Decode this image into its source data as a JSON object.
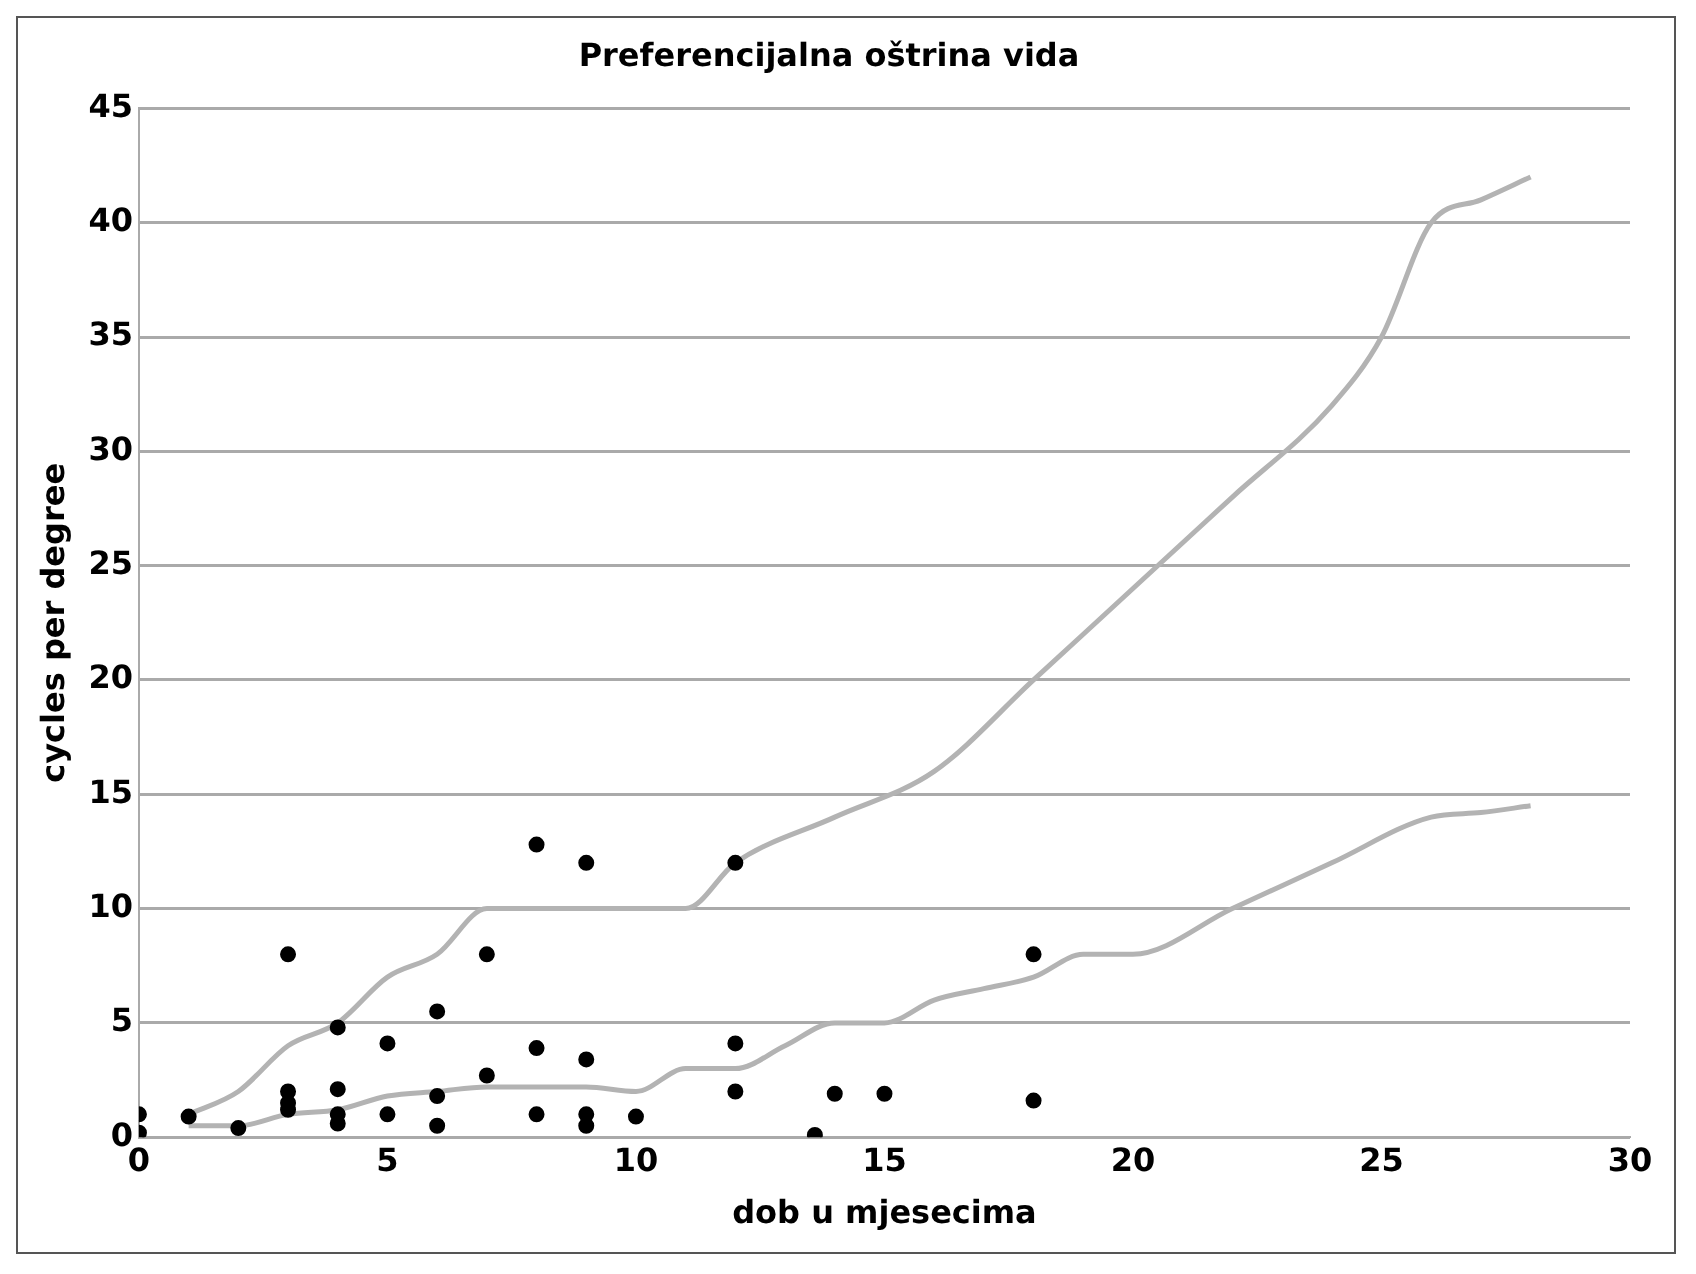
{
  "chart_data": {
    "type": "scatter",
    "title": "Preferencijalna oštrina vida",
    "xlabel": "dob u mjesecima",
    "ylabel": "cycles per degree",
    "xlim": [
      0,
      30
    ],
    "xticks": [
      0,
      5,
      10,
      15,
      20,
      25,
      30
    ],
    "ylim": [
      0,
      45
    ],
    "yticks": [
      0,
      5,
      10,
      15,
      20,
      25,
      30,
      35,
      40,
      45
    ],
    "grid": "y",
    "legend": false,
    "series": [
      {
        "color": "#000000",
        "marker": "circle",
        "x": [
          0,
          0,
          1,
          2,
          3,
          3,
          3,
          3,
          4,
          4,
          4,
          4,
          5,
          5,
          6,
          6,
          6,
          7,
          7,
          8,
          8,
          8,
          9,
          9,
          9,
          9,
          10,
          12,
          12,
          12,
          13.6,
          14,
          15,
          18,
          18
        ],
        "values": [
          1,
          0.2,
          0.9,
          0.4,
          8,
          2,
          1.5,
          1.2,
          4.8,
          2.1,
          1,
          0.6,
          4.1,
          1,
          5.5,
          1.8,
          0.5,
          8,
          2.7,
          12.8,
          3.9,
          1,
          12,
          3.4,
          1,
          0.5,
          0.9,
          12,
          4.1,
          2,
          0.1,
          1.9,
          1.9,
          8,
          1.6
        ]
      },
      {
        "type": "line",
        "color": "#b3b3b3",
        "marker": "none",
        "x": [
          1,
          2,
          3,
          4,
          5,
          6,
          7,
          8,
          9,
          10,
          11,
          12,
          14,
          16,
          18,
          20,
          22,
          24,
          25,
          26,
          27,
          28
        ],
        "values": [
          1,
          2,
          4,
          5,
          7,
          8,
          10,
          10,
          10,
          10,
          10,
          12,
          14,
          16,
          20,
          24,
          28,
          32,
          35,
          40,
          41,
          42
        ]
      },
      {
        "type": "line",
        "color": "#b3b3b3",
        "marker": "none",
        "x": [
          1,
          2,
          3,
          4,
          5,
          6,
          7,
          8,
          9,
          10,
          11,
          12,
          13,
          14,
          15,
          16,
          17,
          18,
          19,
          20,
          22,
          24,
          26,
          27,
          28
        ],
        "values": [
          0.5,
          0.5,
          1,
          1.2,
          1.8,
          2,
          2.2,
          2.2,
          2.2,
          2,
          3,
          3,
          4,
          5,
          5,
          6,
          6.5,
          7,
          8,
          8,
          10,
          12,
          14,
          14.2,
          14.5
        ]
      }
    ]
  }
}
